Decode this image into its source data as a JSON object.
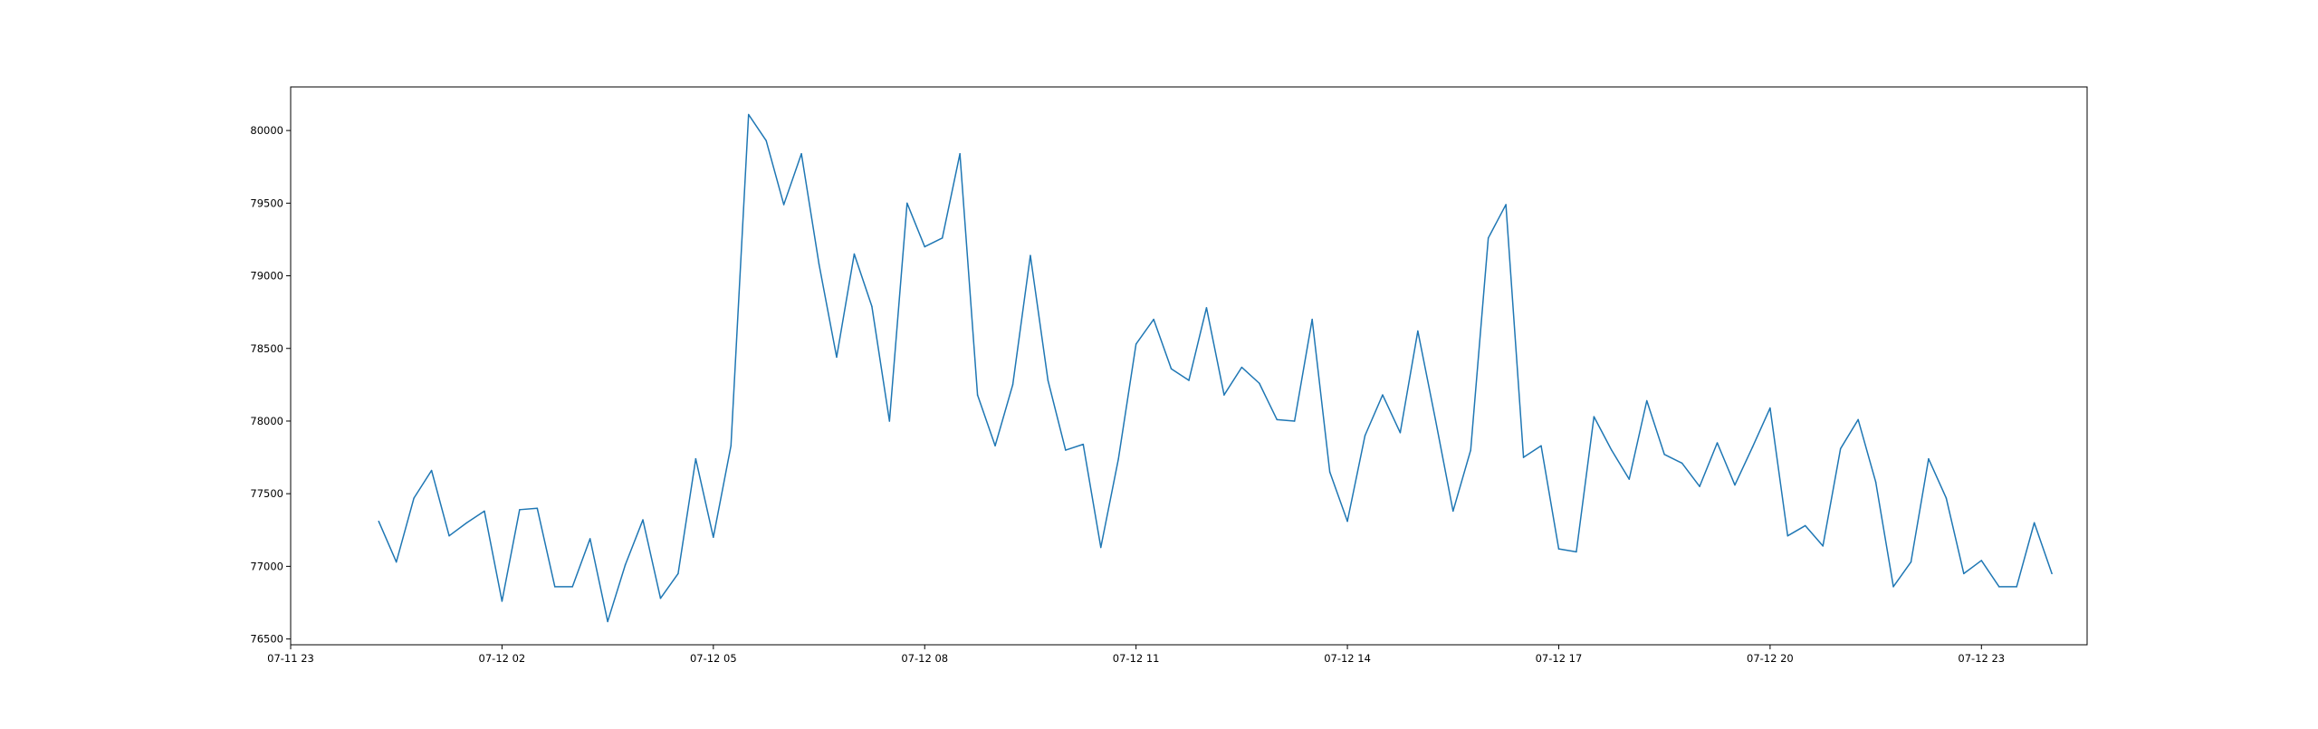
{
  "chart_data": {
    "type": "line",
    "title": "",
    "xlabel": "",
    "ylabel": "",
    "grid": false,
    "legend": "none",
    "line_color": "#1f77b4",
    "x_start": "07-11 23:00",
    "x_step_minutes": 15,
    "xlim": [
      "07-11 23:00",
      "07-13 00:30"
    ],
    "ylim": [
      76460,
      80300
    ],
    "x_tick_labels": [
      "07-11 23",
      "07-12 02",
      "07-12 05",
      "07-12 08",
      "07-12 11",
      "07-12 14",
      "07-12 17",
      "07-12 20",
      "07-12 23"
    ],
    "y_ticks": [
      76500,
      77000,
      77500,
      78000,
      78500,
      79000,
      79500,
      80000
    ],
    "x": [
      "07-12 00:15",
      "07-12 00:30",
      "07-12 00:45",
      "07-12 01:00",
      "07-12 01:15",
      "07-12 01:30",
      "07-12 01:45",
      "07-12 02:00",
      "07-12 02:15",
      "07-12 02:30",
      "07-12 02:45",
      "07-12 03:00",
      "07-12 03:15",
      "07-12 03:30",
      "07-12 03:45",
      "07-12 04:00",
      "07-12 04:15",
      "07-12 04:30",
      "07-12 04:45",
      "07-12 05:00",
      "07-12 05:15",
      "07-12 05:30",
      "07-12 05:45",
      "07-12 06:00",
      "07-12 06:15",
      "07-12 06:30",
      "07-12 06:45",
      "07-12 07:00",
      "07-12 07:15",
      "07-12 07:30",
      "07-12 07:45",
      "07-12 08:00",
      "07-12 08:15",
      "07-12 08:30",
      "07-12 08:45",
      "07-12 09:00",
      "07-12 09:15",
      "07-12 09:30",
      "07-12 09:45",
      "07-12 10:00",
      "07-12 10:15",
      "07-12 10:30",
      "07-12 10:45",
      "07-12 11:00",
      "07-12 11:15",
      "07-12 11:30",
      "07-12 11:45",
      "07-12 12:00",
      "07-12 12:15",
      "07-12 12:30",
      "07-12 12:45",
      "07-12 13:00",
      "07-12 13:15",
      "07-12 13:30",
      "07-12 13:45",
      "07-12 14:00",
      "07-12 14:15",
      "07-12 14:30",
      "07-12 14:45",
      "07-12 15:00",
      "07-12 15:15",
      "07-12 15:30",
      "07-12 15:45",
      "07-12 16:00",
      "07-12 16:15",
      "07-12 16:30",
      "07-12 16:45",
      "07-12 17:00",
      "07-12 17:15",
      "07-12 17:30",
      "07-12 17:45",
      "07-12 18:00",
      "07-12 18:15",
      "07-12 18:30",
      "07-12 18:45",
      "07-12 19:00",
      "07-12 19:15",
      "07-12 19:30",
      "07-12 19:45",
      "07-12 20:00",
      "07-12 20:15",
      "07-12 20:30",
      "07-12 20:45",
      "07-12 21:00",
      "07-12 21:15",
      "07-12 21:30",
      "07-12 21:45",
      "07-12 22:00",
      "07-12 22:15",
      "07-12 22:30",
      "07-12 22:45",
      "07-12 23:00",
      "07-12 23:15",
      "07-12 23:30",
      "07-12 23:45",
      "07-13 00:00"
    ],
    "values": [
      77310,
      77030,
      77470,
      77660,
      77210,
      77300,
      77380,
      76760,
      77390,
      77400,
      76860,
      76860,
      77190,
      76620,
      77010,
      77320,
      76780,
      76950,
      77740,
      77200,
      77830,
      80110,
      79930,
      79490,
      79840,
      79080,
      78440,
      79150,
      78790,
      78000,
      79500,
      79200,
      79260,
      79840,
      78180,
      77830,
      78250,
      79140,
      78280,
      77800,
      77840,
      77130,
      77740,
      78530,
      78700,
      78360,
      78280,
      78780,
      78180,
      78370,
      78260,
      78010,
      78000,
      78700,
      77650,
      77310,
      77900,
      78180,
      77920,
      78620,
      78010,
      77380,
      77800,
      79260,
      79490,
      77750,
      77830,
      77120,
      77100,
      78030,
      77800,
      77600,
      78140,
      77770,
      77710,
      77550,
      77850,
      77560,
      77820,
      78090,
      77210,
      77280,
      77140,
      77810,
      78010,
      77580,
      76860,
      77030,
      77740,
      77470,
      76950,
      77040,
      76860,
      76860,
      77300,
      76950
    ]
  }
}
